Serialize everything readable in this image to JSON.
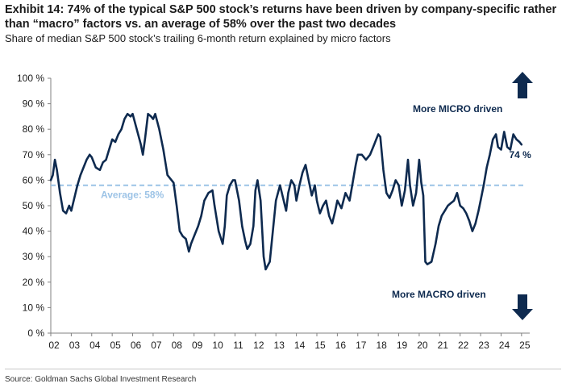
{
  "title": "Exhibit 14: 74% of the typical S&P 500 stock’s returns have been driven by company-specific rather than “macro” factors vs. an average of 58% over the past two decades",
  "subtitle": "Share of median S&P 500 stock’s trailing 6-month return explained by micro factors",
  "source": "Source: Goldman Sachs Global Investment Research",
  "colors": {
    "line": "#0e2a4f",
    "average": "#9cc3e6",
    "average_text": "#9cc3e6",
    "arrow": "#0e2a4f",
    "axis": "#808080"
  },
  "chart_data": {
    "type": "line",
    "xlabel": "",
    "ylabel": "",
    "xlim": [
      2002.0,
      2025.4
    ],
    "ylim": [
      0,
      100
    ],
    "y_ticks": [
      0,
      10,
      20,
      30,
      40,
      50,
      60,
      70,
      80,
      90,
      100
    ],
    "y_tick_labels": [
      "0 %",
      "10 %",
      "20 %",
      "30 %",
      "40 %",
      "50 %",
      "60 %",
      "70 %",
      "80 %",
      "90 %",
      "100 %"
    ],
    "x_tick_years": [
      2002,
      2003,
      2004,
      2005,
      2006,
      2007,
      2008,
      2009,
      2010,
      2011,
      2012,
      2013,
      2014,
      2015,
      2016,
      2017,
      2018,
      2019,
      2020,
      2021,
      2022,
      2023,
      2024,
      2025
    ],
    "x_tick_labels": [
      "02",
      "03",
      "04",
      "05",
      "06",
      "07",
      "08",
      "09",
      "10",
      "11",
      "12",
      "13",
      "14",
      "15",
      "16",
      "17",
      "18",
      "19",
      "20",
      "21",
      "22",
      "23",
      "24",
      "25"
    ],
    "average": {
      "value": 58,
      "label": "Average: 58%"
    },
    "last_value_label": "74 %",
    "annotations": {
      "micro": "More MICRO driven",
      "macro": "More MACRO driven"
    },
    "series": [
      {
        "name": "Share of return explained by micro factors",
        "x": [
          2002.0,
          2002.1,
          2002.2,
          2002.3,
          2002.45,
          2002.6,
          2002.75,
          2002.9,
          2003.0,
          2003.15,
          2003.3,
          2003.45,
          2003.6,
          2003.75,
          2003.9,
          2004.0,
          2004.2,
          2004.4,
          2004.55,
          2004.7,
          2004.85,
          2005.0,
          2005.15,
          2005.3,
          2005.45,
          2005.6,
          2005.75,
          2005.9,
          2006.0,
          2006.2,
          2006.4,
          2006.5,
          2006.6,
          2006.75,
          2006.9,
          2007.0,
          2007.1,
          2007.3,
          2007.5,
          2007.7,
          2007.9,
          2008.0,
          2008.15,
          2008.3,
          2008.45,
          2008.6,
          2008.75,
          2008.85,
          2009.0,
          2009.2,
          2009.35,
          2009.5,
          2009.7,
          2009.9,
          2010.0,
          2010.2,
          2010.4,
          2010.5,
          2010.6,
          2010.75,
          2010.9,
          2011.0,
          2011.2,
          2011.35,
          2011.5,
          2011.6,
          2011.75,
          2011.9,
          2012.0,
          2012.1,
          2012.25,
          2012.4,
          2012.5,
          2012.7,
          2012.85,
          2013.0,
          2013.2,
          2013.35,
          2013.5,
          2013.6,
          2013.75,
          2013.9,
          2014.0,
          2014.15,
          2014.3,
          2014.45,
          2014.6,
          2014.75,
          2014.9,
          2015.0,
          2015.15,
          2015.3,
          2015.45,
          2015.6,
          2015.75,
          2015.9,
          2016.0,
          2016.2,
          2016.4,
          2016.6,
          2016.75,
          2016.9,
          2017.0,
          2017.2,
          2017.4,
          2017.6,
          2017.8,
          2017.9,
          2018.0,
          2018.1,
          2018.25,
          2018.4,
          2018.55,
          2018.7,
          2018.85,
          2019.0,
          2019.15,
          2019.3,
          2019.45,
          2019.55,
          2019.7,
          2019.85,
          2020.0,
          2020.1,
          2020.2,
          2020.3,
          2020.4,
          2020.6,
          2020.8,
          2020.95,
          2021.1,
          2021.25,
          2021.4,
          2021.55,
          2021.7,
          2021.85,
          2022.0,
          2022.15,
          2022.3,
          2022.45,
          2022.6,
          2022.75,
          2022.9,
          2023.0,
          2023.15,
          2023.3,
          2023.45,
          2023.6,
          2023.75,
          2023.85,
          2024.0,
          2024.15,
          2024.3,
          2024.45,
          2024.6,
          2024.75,
          2024.9,
          2025.0
        ],
        "values": [
          60,
          62,
          68,
          64,
          55,
          48,
          47,
          50,
          48,
          53,
          58,
          62,
          65,
          68,
          70,
          69,
          65,
          64,
          67,
          68,
          72,
          76,
          75,
          78,
          80,
          84,
          86,
          85,
          86,
          80,
          74,
          70,
          76,
          86,
          85,
          84,
          86,
          80,
          72,
          62,
          60,
          59,
          50,
          40,
          38,
          37,
          32,
          35,
          38,
          42,
          46,
          52,
          55,
          56,
          50,
          40,
          35,
          42,
          54,
          58,
          60,
          60,
          52,
          42,
          36,
          33,
          35,
          42,
          56,
          60,
          52,
          30,
          25,
          28,
          40,
          52,
          58,
          53,
          48,
          55,
          60,
          58,
          52,
          58,
          63,
          66,
          60,
          54,
          58,
          52,
          47,
          50,
          52,
          46,
          43,
          48,
          52,
          49,
          55,
          52,
          59,
          66,
          70,
          70,
          68,
          70,
          74,
          76,
          78,
          77,
          64,
          55,
          53,
          56,
          60,
          58,
          50,
          56,
          68,
          58,
          50,
          55,
          68,
          59,
          54,
          28,
          27,
          28,
          35,
          42,
          46,
          48,
          50,
          51,
          52,
          55,
          50,
          49,
          47,
          44,
          40,
          43,
          48,
          52,
          58,
          65,
          70,
          76,
          78,
          73,
          72,
          79,
          73,
          72,
          78,
          76,
          75,
          74
        ]
      }
    ]
  }
}
